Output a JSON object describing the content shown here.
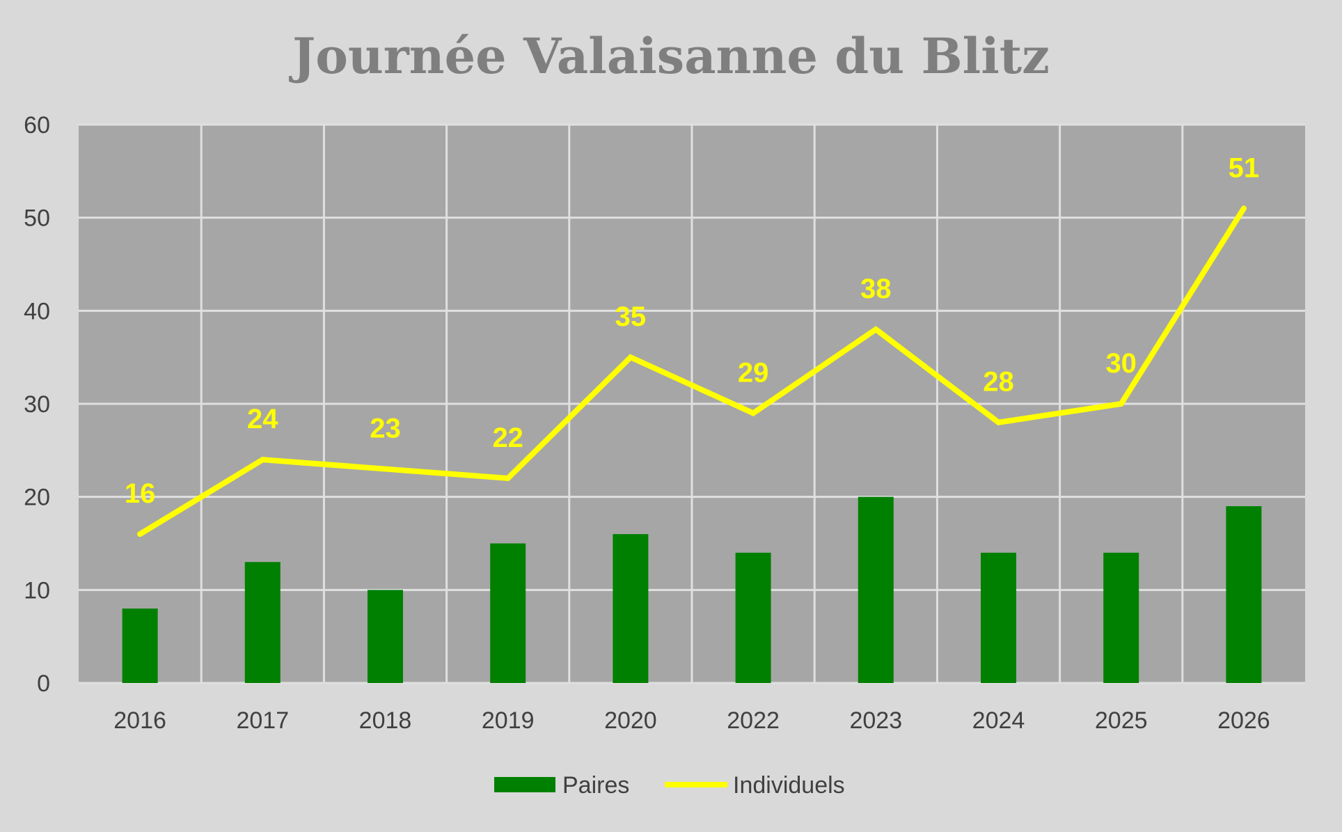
{
  "chart_data": {
    "type": "bar",
    "title": "Journée Valaisanne du Blitz",
    "categories": [
      "2016",
      "2017",
      "2018",
      "2019",
      "2020",
      "2022",
      "2023",
      "2024",
      "2025",
      "2026"
    ],
    "series": [
      {
        "name": "Paires",
        "type": "bar",
        "color": "#008000",
        "values": [
          8,
          13,
          10,
          15,
          16,
          14,
          20,
          14,
          14,
          19
        ]
      },
      {
        "name": "Individuels",
        "type": "line",
        "color": "#ffff00",
        "data_labels": true,
        "values": [
          16,
          24,
          23,
          22,
          35,
          29,
          38,
          28,
          30,
          51
        ]
      }
    ],
    "ylim": [
      0,
      60
    ],
    "yticks": [
      0,
      10,
      20,
      30,
      40,
      50,
      60
    ],
    "grid": true,
    "legend": "bottom",
    "plot_background": "#a6a6a6",
    "background": "#d9d9d9"
  }
}
